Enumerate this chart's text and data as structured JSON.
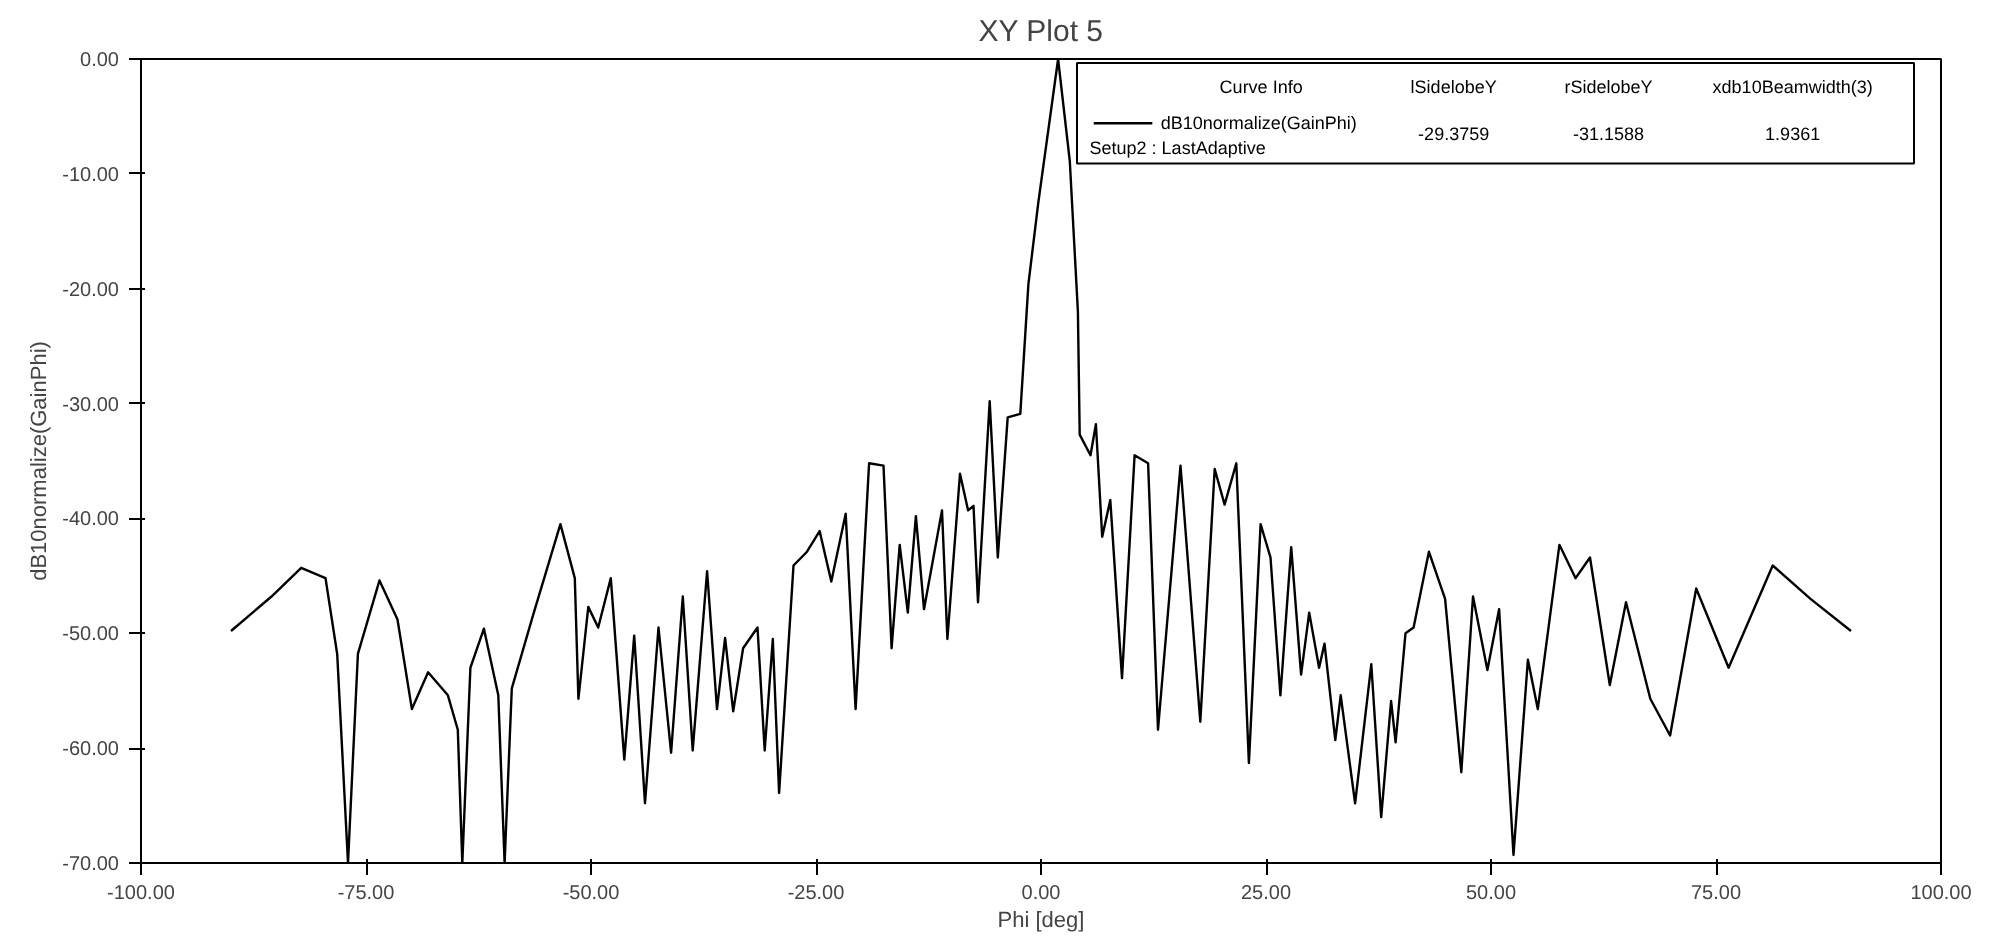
{
  "chart_data": {
    "type": "line",
    "title": "XY Plot 5",
    "xlabel": "Phi [deg]",
    "ylabel": "dB10normalize(GainPhi)",
    "xlim": [
      -100,
      100
    ],
    "ylim": [
      -70,
      0
    ],
    "xticks": [
      {
        "value": -100,
        "label": "-100.00"
      },
      {
        "value": -75,
        "label": "-75.00"
      },
      {
        "value": -50,
        "label": "-50.00"
      },
      {
        "value": -25,
        "label": "-25.00"
      },
      {
        "value": 0,
        "label": "0.00"
      },
      {
        "value": 25,
        "label": "25.00"
      },
      {
        "value": 50,
        "label": "50.00"
      },
      {
        "value": 75,
        "label": "75.00"
      },
      {
        "value": 100,
        "label": "100.00"
      }
    ],
    "yticks": [
      {
        "value": 0,
        "label": "0.00"
      },
      {
        "value": -10,
        "label": "-10.00"
      },
      {
        "value": -20,
        "label": "-20.00"
      },
      {
        "value": -30,
        "label": "-30.00"
      },
      {
        "value": -40,
        "label": "-40.00"
      },
      {
        "value": -50,
        "label": "-50.00"
      },
      {
        "value": -60,
        "label": "-60.00"
      },
      {
        "value": -70,
        "label": "-70.00"
      }
    ],
    "legend": "top right",
    "line_style": "solid",
    "annotations": [
      "Curve Info",
      "lSidelobeY",
      "rSidelobeY",
      "xdb10Beamwidth(3)",
      "-29.3759",
      "-31.1588",
      "1.9361"
    ],
    "series": [
      {
        "name": "dB10normalize(GainPhi)\nSetup2 : LastAdaptive",
        "color": "#000000",
        "x": [
          -90.0,
          -85.5,
          -82.2,
          -79.5,
          -78.2,
          -77.0,
          -75.9,
          -73.5,
          -71.5,
          -69.9,
          -68.1,
          -65.9,
          -64.8,
          -64.3,
          -63.4,
          -61.9,
          -60.3,
          -59.6,
          -58.8,
          -56.5,
          -53.4,
          -51.8,
          -51.4,
          -50.3,
          -49.2,
          -47.8,
          -46.3,
          -45.2,
          -44.0,
          -42.5,
          -41.1,
          -39.8,
          -38.7,
          -37.1,
          -36.0,
          -35.1,
          -34.2,
          -33.1,
          -31.5,
          -30.7,
          -29.8,
          -29.1,
          -27.5,
          -26.0,
          -24.6,
          -23.3,
          -21.7,
          -20.6,
          -19.1,
          -17.5,
          -16.6,
          -15.7,
          -14.8,
          -13.9,
          -13.0,
          -11.0,
          -10.4,
          -9.0,
          -8.1,
          -7.5,
          -7.0,
          -5.7,
          -4.8,
          -3.7,
          -2.3,
          -1.4,
          -0.3,
          1.9,
          3.2,
          4.1,
          4.3,
          5.5,
          6.1,
          6.8,
          7.7,
          9.0,
          10.4,
          11.9,
          13.0,
          15.5,
          17.7,
          19.3,
          20.4,
          21.7,
          23.1,
          24.4,
          25.5,
          26.6,
          27.8,
          28.9,
          29.8,
          30.9,
          31.5,
          32.7,
          33.3,
          34.9,
          36.7,
          37.8,
          38.9,
          39.4,
          40.5,
          41.4,
          43.1,
          44.9,
          46.7,
          48.0,
          49.6,
          50.9,
          52.5,
          54.1,
          55.2,
          57.6,
          59.4,
          61.0,
          63.2,
          65.0,
          67.7,
          69.9,
          72.8,
          76.4,
          81.3,
          85.5,
          90.0
        ],
        "values": [
          -49.8,
          -46.8,
          -44.3,
          -45.2,
          -51.8,
          -70.0,
          -51.8,
          -45.4,
          -48.8,
          -56.6,
          -53.4,
          -55.4,
          -58.4,
          -70.0,
          -53.0,
          -49.6,
          -55.4,
          -70.0,
          -54.8,
          -48.6,
          -40.5,
          -45.2,
          -55.7,
          -47.7,
          -49.5,
          -45.2,
          -61.0,
          -50.2,
          -64.8,
          -49.5,
          -60.4,
          -46.8,
          -60.2,
          -44.6,
          -56.6,
          -50.4,
          -56.8,
          -51.3,
          -49.5,
          -60.2,
          -50.5,
          -63.9,
          -44.1,
          -42.9,
          -41.1,
          -45.5,
          -39.6,
          -56.6,
          -35.2,
          -35.4,
          -51.3,
          -42.3,
          -48.2,
          -39.8,
          -47.9,
          -39.3,
          -50.5,
          -36.1,
          -39.3,
          -38.9,
          -47.3,
          -29.8,
          -43.4,
          -31.2,
          -30.9,
          -19.6,
          -12.5,
          0.0,
          -8.9,
          -22.0,
          -32.7,
          -34.5,
          -31.8,
          -41.6,
          -38.4,
          -53.9,
          -34.5,
          -35.2,
          -58.4,
          -35.4,
          -57.7,
          -35.7,
          -38.8,
          -35.2,
          -61.3,
          -40.5,
          -43.4,
          -55.4,
          -42.5,
          -53.6,
          -48.2,
          -53.0,
          -50.9,
          -59.3,
          -55.4,
          -64.8,
          -52.7,
          -66.0,
          -55.9,
          -59.5,
          -50.0,
          -49.5,
          -42.9,
          -47.0,
          -62.1,
          -46.8,
          -53.2,
          -47.9,
          -69.3,
          -52.3,
          -56.6,
          -42.3,
          -45.2,
          -43.4,
          -54.5,
          -47.3,
          -55.7,
          -58.9,
          -46.1,
          -53.0,
          -44.1,
          -47.0,
          -49.8
        ]
      }
    ]
  }
}
